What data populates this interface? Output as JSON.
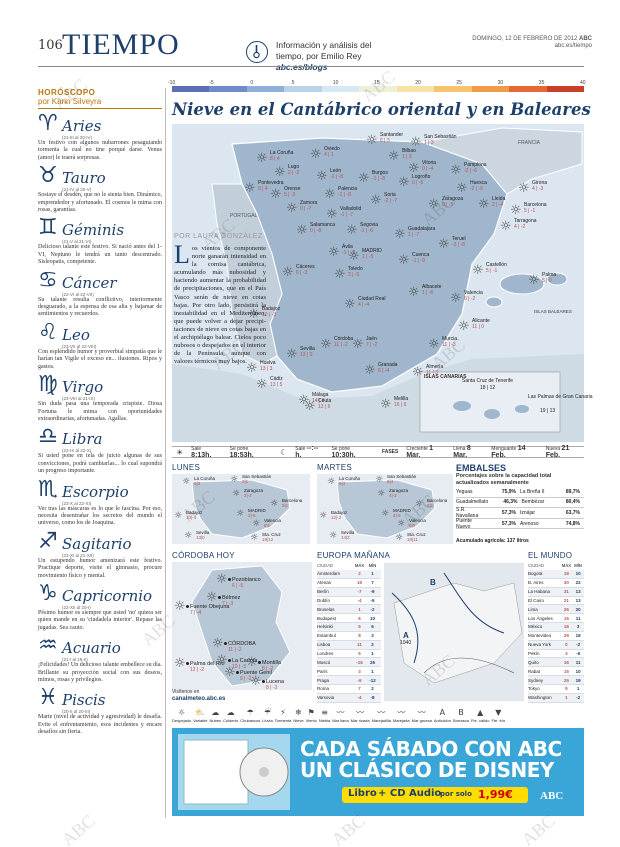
{
  "header": {
    "page_number": "106",
    "section": "TIEMPO",
    "blog_line1": "Información y análisis del",
    "blog_line2": "tiempo, por Emilio Rey",
    "blog_url": "abc.es/blogs",
    "date": "DOMINGO, 12 DE FEBRERO DE 2012",
    "brand": "ABC",
    "url": "abc.es/tiempo"
  },
  "horoscope": {
    "heading": "HORÓSCOPO",
    "byline": "por Karin Silveyra",
    "signs": [
      {
        "icon": "♈",
        "name": "Aries",
        "dates": "(21-III al 20-IV)",
        "text": "Un festivo con algunos nubarro­nes pesaguiando tormenta la cual no ti­ne porqué darse. Venus (amor) le traerá sorpresas."
      },
      {
        "icon": "♉",
        "name": "Tauro",
        "dates": "(21-IV al 20-V)",
        "text": "Sosiaye el desdén, que no le sienta bien. Dinámico, emprendedor y afortunado. El cosmos le mima con ro­sas, garantías."
      },
      {
        "icon": "♊",
        "name": "Géminis",
        "dates": "(21-V al 21-VI)",
        "text": "Delicioso talante este festivo. Si nació antes del 1-VI, Neptuno le tendrá un tanto descentrado. Sisleopatis, com­petente."
      },
      {
        "icon": "♋",
        "name": "Cáncer",
        "dates": "(22-VI al 22-VII)",
        "text": "Su talante resulta conflictivo, interiormente desguarado, a la espensa de esa alta y bajamar de sentimientos y recuerdos."
      },
      {
        "icon": "♌",
        "name": "Leo",
        "dates": "(23-VII al 22-VIII)",
        "text": "Con espléndido humor y pro­verbial simpatía que le harían tan Vigile el exceso en... ilusiones. Ripos y gastos."
      },
      {
        "icon": "♍",
        "name": "Virgo",
        "dates": "(23-VIII al 21-IX)",
        "text": "Sin duda pasa una temporada crispiste. Diosa Fortuna le mima con oportunidades extraordinarias, afortu­nadas. Agallas."
      },
      {
        "icon": "♎",
        "name": "Libra",
        "dates": "(22-IX al 22-X)",
        "text": "Si usted pone en tela de juicio algunas de sus convicciones, podrá cam­biarlas... lo cual supondrá un progreso importante."
      },
      {
        "icon": "♏",
        "name": "Escorpio",
        "dates": "(23-X al 22-XI)",
        "text": "Ver tras las máscaras es lo que le fascina. Por eso, necesita desentrañar los secretos del mundo el universo, como los de Joaquina."
      },
      {
        "icon": "♐",
        "name": "Sagitario",
        "dates": "(23-XI al 21-XII)",
        "text": "Un estupendo humor amenizará este festivo. Practique deporte, visite el gimnasio, procure movimiento físico y mental."
      },
      {
        "icon": "♑",
        "name": "Capricornio",
        "dates": "(22-XII al 20-I)",
        "text": "Pésimo humor es siempre que usted 'no' quiera ser quien mande en su 'ciudadela interior'. Repase las jugadas. Sea cauto."
      },
      {
        "icon": "♒",
        "name": "Acuario",
        "dates": "(21-I al 19-II)",
        "text": "¡Felicidades! Un delicioso ta­lante embellece su día. Brillante su pro­yección social con sus deseos, mimos, rosas y privilegios."
      },
      {
        "icon": "♓",
        "name": "Piscis",
        "dates": "(20-II al 20-III)",
        "text": "Marte (nivel de actividad y agre­sividad) le desafía. Evite el enfrentamien­to, esos incidentes y encare desafíos sin fieria."
      }
    ]
  },
  "temp_scale": {
    "labels": [
      "-10",
      "-5",
      "0",
      "5",
      "10",
      "15",
      "20",
      "25",
      "30",
      "35",
      "40"
    ],
    "colors": [
      "#5b6fb3",
      "#6f8cc6",
      "#8fb0d9",
      "#b9d3ea",
      "#d6e8f3",
      "#eef1d8",
      "#f6e3a6",
      "#f4c56d",
      "#ef9b47",
      "#e46a34",
      "#c8402a"
    ]
  },
  "headline": "Nieve en el Cantábrico oriental y en Baleares",
  "story": {
    "byline": "POR LAURA GONZÁLEZ",
    "dropcap": "L",
    "text": "os vientos de componente norte ganarán inten­sidad en la cornisa cantábrica, acumulando más nubosidad y haciendo aumentar la probabilidad de precipitaciones, que en el País Vasco serán de nieve en cotas bajas. Por otro lado, persistirá la inestabilidad en el Mediterráneo, que puede volver a dejar precipi­taciones de nieve en cotas bajas en el archipiélago balear. Cielos poco nubosos o despejados en el interior de la Península, aunque con valores térmicos muy bajos."
  },
  "map": {
    "cities": [
      {
        "name": "Santander",
        "t": "6 | 3"
      },
      {
        "name": "San Sebastián",
        "t": "1 | 3"
      },
      {
        "name": "Oviedo",
        "t": "4 | 1"
      },
      {
        "name": "La Coruña",
        "t": "8 | 4"
      },
      {
        "name": "Bilbao",
        "t": "1 | 3"
      },
      {
        "name": "Vitoria",
        "t": "0 | -4"
      },
      {
        "name": "Pamplona",
        "t": "-2 | -6"
      },
      {
        "name": "Lugo",
        "t": "2 | -2"
      },
      {
        "name": "León",
        "t": "-2 | -8"
      },
      {
        "name": "Burgos",
        "t": "-1 | -8"
      },
      {
        "name": "Logroño",
        "t": "0 | -5"
      },
      {
        "name": "Huesca",
        "t": "-2 | -6"
      },
      {
        "name": "Girona",
        "t": "4 | -3"
      },
      {
        "name": "Pontevedra",
        "t": "9 | 4"
      },
      {
        "name": "Orense",
        "t": "5 | -3"
      },
      {
        "name": "Palencia",
        "t": "-1 | -8"
      },
      {
        "name": "Soria",
        "t": "-2 | -7"
      },
      {
        "name": "Zaragoza",
        "t": "0 | -5"
      },
      {
        "name": "Lleida",
        "t": "2 | -4"
      },
      {
        "name": "Barcelona",
        "t": "5 | -1"
      },
      {
        "name": "Zamora",
        "t": "0 | -7"
      },
      {
        "name": "Valladolid",
        "t": "-1 | -7"
      },
      {
        "name": "Tarragona",
        "t": "4 | -2"
      },
      {
        "name": "Salamanca",
        "t": "0 | -8"
      },
      {
        "name": "Segovia",
        "t": "-1 | -6"
      },
      {
        "name": "Guadalajara",
        "t": "1 | -7"
      },
      {
        "name": "Teruel",
        "t": "-2 | -8"
      },
      {
        "name": "Ávila",
        "t": "-1 | -9"
      },
      {
        "name": "MADRID",
        "t": "1 | -5"
      },
      {
        "name": "Cuenca",
        "t": "-1 | -9"
      },
      {
        "name": "Castellón",
        "t": "5 | -1"
      },
      {
        "name": "Palma",
        "t": "5 | 0"
      },
      {
        "name": "Cáceres",
        "t": "6 | -3"
      },
      {
        "name": "Toledo",
        "t": "3 | -5"
      },
      {
        "name": "Valencia",
        "t": "6 | -2"
      },
      {
        "name": "Badajoz",
        "t": "10 | -3"
      },
      {
        "name": "Ciudad Real",
        "t": "4 | -4"
      },
      {
        "name": "Albacete",
        "t": "1 | -6"
      },
      {
        "name": "Alicante",
        "t": "11 | 0"
      },
      {
        "name": "Córdoba",
        "t": "11 | -2"
      },
      {
        "name": "Jaén",
        "t": "7 | -2"
      },
      {
        "name": "Murcia",
        "t": "11 | -3"
      },
      {
        "name": "Sevilla",
        "t": "13 | 0"
      },
      {
        "name": "Huelva",
        "t": "13 | 3"
      },
      {
        "name": "Granada",
        "t": "6 | -4"
      },
      {
        "name": "Almería",
        "t": "11 | 3"
      },
      {
        "name": "Cádiz",
        "t": "13 | 5"
      },
      {
        "name": "Málaga",
        "t": "14 | 3"
      },
      {
        "name": "Ceuta",
        "t": "12 | 6"
      },
      {
        "name": "Melilla",
        "t": "16 | 6"
      }
    ],
    "labels": {
      "france": "FRANCIA",
      "portugal": "PORTUGAL",
      "baleares": "ISLAS BALEARES",
      "canarias": "ISLAS CANARIAS",
      "tenerife": "Santa Cruz de Tenerife",
      "tenerife_t": "18 | 12",
      "laspalmas": "Las Palmas de Gran Canaria",
      "laspalmas_t": "19 | 13"
    }
  },
  "sun_moon": {
    "sunrise_label": "Sale",
    "sunrise": "8:13h.",
    "sunset_label": "Se pone",
    "sunset": "18:53h.",
    "moonrise_label": "Sale",
    "moonrise": "--:--h.",
    "moonset_label": "Se pone",
    "moonset": "10:30h.",
    "phases_label": "FASES",
    "phases": [
      {
        "n": "Creciente",
        "d": "1 Mar."
      },
      {
        "n": "Llena",
        "d": "8 Mar."
      },
      {
        "n": "Menguante",
        "d": "14 Feb."
      },
      {
        "n": "Nueva",
        "d": "21 Feb."
      }
    ]
  },
  "lunes": {
    "title": "LUNES",
    "cities": [
      {
        "name": "La Coruña",
        "t": "8|3"
      },
      {
        "name": "San Sebastián",
        "t": "2|1"
      },
      {
        "name": "Zaragoza",
        "t": "2|-3"
      },
      {
        "name": "Barcelona",
        "t": "5|1"
      },
      {
        "name": "MADRID",
        "t": "2|-5"
      },
      {
        "name": "Badajoz",
        "t": "10|-4"
      },
      {
        "name": "Valencia",
        "t": "8|2"
      },
      {
        "name": "Sevilla",
        "t": "13|0"
      },
      {
        "name": "Sta. Cruz",
        "t": "19|12"
      }
    ]
  },
  "martes": {
    "title": "MARTES",
    "cities": [
      {
        "name": "La Coruña",
        "t": "9|4"
      },
      {
        "name": "San Sebastián",
        "t": "6|4"
      },
      {
        "name": "Zaragoza",
        "t": "4|-2"
      },
      {
        "name": "Barcelona",
        "t": "6|1"
      },
      {
        "name": "MADRID",
        "t": "4|-5"
      },
      {
        "name": "Badajoz",
        "t": "12|-2"
      },
      {
        "name": "Valencia",
        "t": "8|0"
      },
      {
        "name": "Sevilla",
        "t": "14|2"
      },
      {
        "name": "Sta. Cruz",
        "t": "19|11"
      }
    ]
  },
  "embalses": {
    "title": "EMBALSES",
    "subtitle": "Porcentajes sobre la capacidad total actualizados semanalmente",
    "rows": [
      {
        "a": "Yeguas",
        "av": "75,9%",
        "b": "La Breña II",
        "bv": "89,7%"
      },
      {
        "a": "Guadalmellato",
        "av": "46,3%",
        "b": "Bembézar",
        "bv": "80,4%"
      },
      {
        "a": "S.R. Navallana",
        "av": "57,3%",
        "b": "Iznájar",
        "bv": "63,7%"
      },
      {
        "a": "Puente Nuevo",
        "av": "57,3%",
        "b": "Arenoso",
        "bv": "74,8%"
      }
    ],
    "total_label": "Acumulado agrícola: 137 litros"
  },
  "cordoba": {
    "title": "CÓRDOBA HOY",
    "footer": "Visítenos en",
    "footer_url": "canalmeteo.abc.es",
    "cities": [
      {
        "name": "Pozoblanco",
        "t": "6 | -5"
      },
      {
        "name": "Bélmez",
        "t": "7 | -3"
      },
      {
        "name": "Fuente Obejuna",
        "t": "7 | -4"
      },
      {
        "name": "CÓRDOBA",
        "t": "11 | -2"
      },
      {
        "name": "La Carlota",
        "t": "10 | -3"
      },
      {
        "name": "Palma del Río",
        "t": "12 | -2"
      },
      {
        "name": "Montilla",
        "t": "8 | -2"
      },
      {
        "name": "Puente Genil",
        "t": "9 | -2"
      },
      {
        "name": "Lucena",
        "t": "8 | -3"
      }
    ]
  },
  "europa": {
    "title": "EUROPA MAÑANA",
    "headers": [
      "CIUDAD",
      "MÁX",
      "MÍN"
    ],
    "rows": [
      [
        "Ámsterdam",
        "2",
        "1"
      ],
      [
        "Atenas",
        "15",
        "7"
      ],
      [
        "Berlín",
        "-7",
        "-9"
      ],
      [
        "Dublín",
        "-4",
        "-5"
      ],
      [
        "Bruselas",
        "1",
        "-2"
      ],
      [
        "Budapest",
        "6",
        "10"
      ],
      [
        "Helsinki",
        "5",
        "6"
      ],
      [
        "Estambul",
        "8",
        "3"
      ],
      [
        "Lisboa",
        "11",
        "2"
      ],
      [
        "Londres",
        "5",
        "1"
      ],
      [
        "Moscú",
        "-16",
        "26"
      ],
      [
        "París",
        "3",
        "1"
      ],
      [
        "Praga",
        "-9",
        "-12"
      ],
      [
        "Roma",
        "7",
        "2"
      ],
      [
        "Varsovia",
        "-4",
        "-8"
      ]
    ]
  },
  "mundo": {
    "title": "EL MUNDO",
    "headers": [
      "CIUDAD",
      "MÁX",
      "MÍN"
    ],
    "rows": [
      [
        "Bogotá",
        "19",
        "10"
      ],
      [
        "B. Aires",
        "30",
        "22"
      ],
      [
        "La Habana",
        "31",
        "13"
      ],
      [
        "El Cairo",
        "21",
        "13"
      ],
      [
        "Lima",
        "26",
        "20"
      ],
      [
        "Los Ángeles",
        "15",
        "11"
      ],
      [
        "México",
        "16",
        "3"
      ],
      [
        "Montevideo",
        "29",
        "18"
      ],
      [
        "Nueva York",
        "0",
        "-2"
      ],
      [
        "Pekín",
        "3",
        "-6"
      ],
      [
        "Quito",
        "16",
        "11"
      ],
      [
        "Rabat",
        "15",
        "10"
      ],
      [
        "Sydney",
        "25",
        "19"
      ],
      [
        "Tokyo",
        "9",
        "1"
      ],
      [
        "Washington",
        "1",
        "-2"
      ]
    ]
  },
  "legend": [
    "Despejado",
    "Variable",
    "Nubes",
    "Cubierto",
    "Chubascos",
    "Lluvia",
    "Tormenta",
    "Nieve",
    "Viento",
    "Niebla",
    "Mar llana",
    "Mar rizada",
    "Marejadilla",
    "Marejada",
    "Mar gruesa",
    "Anticiclón",
    "Borrasca",
    "Fte. cálido",
    "Fte. frío"
  ],
  "legend_icons": [
    "☼",
    "⛅",
    "☁",
    "☁",
    "☂",
    "☔",
    "⚡",
    "❄",
    "⚑",
    "≡",
    "〰",
    "〰",
    "〰",
    "〰",
    "〰",
    "A",
    "B",
    "▲",
    "▼"
  ],
  "europe_map": {
    "high": "A",
    "low": "B",
    "pressure": "1040"
  },
  "ad": {
    "line1": "CADA SÁBADO CON ABC",
    "line2": "UN CLÁSICO DE DISNEY",
    "line3a": "Libro",
    "line3b": "+ CD Audio",
    "line3c": "por solo",
    "price": "1,99€",
    "brand": "ABC"
  },
  "watermark": "ABC"
}
